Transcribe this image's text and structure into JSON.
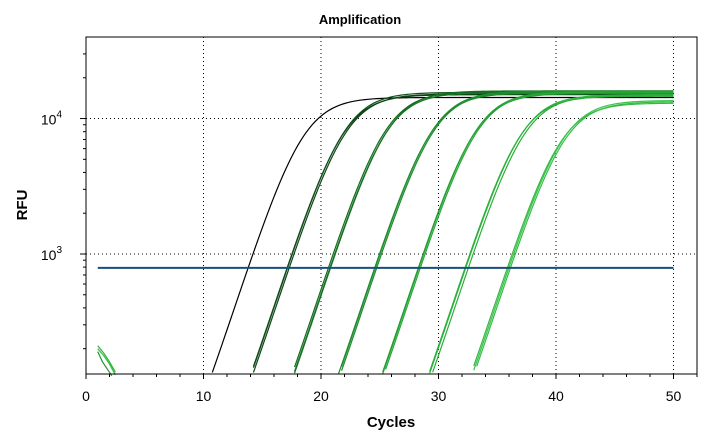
{
  "chart_data": {
    "type": "line",
    "title": "Amplification",
    "xlabel": "Cycles",
    "ylabel": "RFU",
    "xlim": [
      0,
      52
    ],
    "ylim": [
      130,
      40000
    ],
    "y_scale": "log",
    "x_ticks": [
      0,
      10,
      20,
      30,
      40,
      50
    ],
    "x_tick_labels": [
      "0",
      "10",
      "20",
      "30",
      "40",
      "50"
    ],
    "y_ticks": [
      1000,
      10000
    ],
    "y_tick_labels": [
      {
        "base": "10",
        "exp": "3"
      },
      {
        "base": "10",
        "exp": "4"
      }
    ],
    "grid": true,
    "threshold": {
      "value": 790,
      "color": "#1a4f7a"
    },
    "curve_model": {
      "baseline": 10,
      "plateau": 15500,
      "slope": 0.62
    },
    "series": [
      {
        "group": 1,
        "color": "#000000",
        "midpoint": 18.4,
        "plateau": 14300
      },
      {
        "group": 2,
        "color": "#0b3a12",
        "midpoint": 21.8,
        "plateau": 15000
      },
      {
        "group": 2,
        "color": "#11501a",
        "midpoint": 21.9,
        "plateau": 15600
      },
      {
        "group": 2,
        "color": "#0e4616",
        "midpoint": 22.0,
        "plateau": 15200
      },
      {
        "group": 3,
        "color": "#136a20",
        "midpoint": 25.4,
        "plateau": 15800
      },
      {
        "group": 3,
        "color": "#187a26",
        "midpoint": 25.5,
        "plateau": 15500
      },
      {
        "group": 3,
        "color": "#15701f",
        "midpoint": 25.6,
        "plateau": 16000
      },
      {
        "group": 4,
        "color": "#1b862a",
        "midpoint": 29.3,
        "plateau": 15400
      },
      {
        "group": 4,
        "color": "#209030",
        "midpoint": 29.4,
        "plateau": 15900
      },
      {
        "group": 4,
        "color": "#1d8b2c",
        "midpoint": 29.5,
        "plateau": 15700
      },
      {
        "group": 5,
        "color": "#22962f",
        "midpoint": 33.0,
        "plateau": 15300
      },
      {
        "group": 5,
        "color": "#26a035",
        "midpoint": 33.1,
        "plateau": 15800
      },
      {
        "group": 5,
        "color": "#24a832",
        "midpoint": 33.2,
        "plateau": 15600
      },
      {
        "group": 6,
        "color": "#29a83a",
        "midpoint": 36.9,
        "plateau": 14600
      },
      {
        "group": 6,
        "color": "#2db33d",
        "midpoint": 37.0,
        "plateau": 15000
      },
      {
        "group": 6,
        "color": "#2aae38",
        "midpoint": 37.2,
        "plateau": 14800
      },
      {
        "group": 7,
        "color": "#36b846",
        "midpoint": 40.3,
        "plateau": 13000
      },
      {
        "group": 7,
        "color": "#3cc24c",
        "midpoint": 40.5,
        "plateau": 13600
      },
      {
        "group": 7,
        "color": "#33bf44",
        "midpoint": 40.6,
        "plateau": 13300
      }
    ],
    "baseline_noise": [
      {
        "color": "#33bf44",
        "x": [
          1,
          1.5,
          2,
          2.5
        ],
        "y": [
          200,
          178,
          154,
          128
        ]
      },
      {
        "color": "#2db33d",
        "x": [
          1,
          1.5,
          2,
          2.5
        ],
        "y": [
          210,
          186,
          160,
          134
        ]
      },
      {
        "color": "#22962f",
        "x": [
          1,
          1.4,
          1.8,
          2.2
        ],
        "y": [
          190,
          160,
          142,
          126
        ]
      }
    ]
  }
}
